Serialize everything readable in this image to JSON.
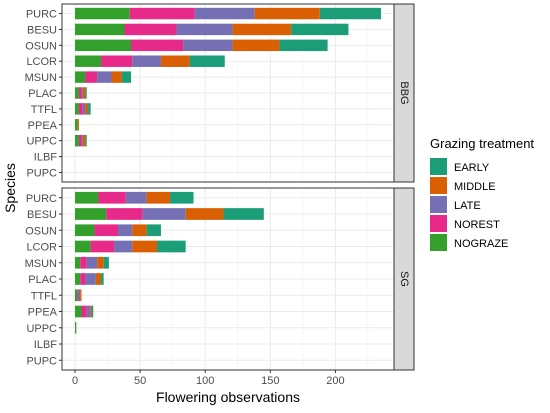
{
  "chart_data": {
    "type": "bar",
    "orientation": "horizontal",
    "stacked": true,
    "xlabel": "Flowering observations",
    "ylabel": "Species",
    "xlim": [
      -10,
      245
    ],
    "x_ticks": [
      0,
      50,
      100,
      150,
      200
    ],
    "grid": true,
    "legend_position": "right",
    "legend_title": "Grazing treatment",
    "legend_order": [
      "EARLY",
      "MIDDLE",
      "LATE",
      "NOREST",
      "NOGRAZE"
    ],
    "stack_order": [
      "NOGRAZE",
      "NOREST",
      "LATE",
      "MIDDLE",
      "EARLY"
    ],
    "colors": {
      "NOGRAZE": "#33a02c",
      "NOREST": "#e7298a",
      "LATE": "#7570b3",
      "MIDDLE": "#d95f02",
      "EARLY": "#1b9e77"
    },
    "panels": [
      {
        "strip_label": "BBG",
        "categories": [
          "PURC",
          "BESU",
          "OSUN",
          "LCOR",
          "MSUN",
          "PLAC",
          "TTFL",
          "PPEA",
          "UPPC",
          "ILBF",
          "PUPC"
        ],
        "series": [
          {
            "name": "NOGRAZE",
            "values": [
              42,
              38,
              43,
              20,
              8,
              3,
              3,
              2,
              3,
              0,
              0
            ]
          },
          {
            "name": "NOREST",
            "values": [
              50,
              40,
              40,
              24,
              9,
              2,
              3,
              0,
              2,
              0,
              0
            ]
          },
          {
            "name": "LATE",
            "values": [
              46,
              43,
              38,
              22,
              11,
              1,
              2,
              0,
              1,
              0,
              0
            ]
          },
          {
            "name": "MIDDLE",
            "values": [
              50,
              45,
              36,
              22,
              8,
              2,
              2,
              1,
              2,
              0,
              0
            ]
          },
          {
            "name": "EARLY",
            "values": [
              47,
              44,
              37,
              27,
              7,
              1,
              2,
              0,
              1,
              0,
              0
            ]
          }
        ]
      },
      {
        "strip_label": "SG",
        "categories": [
          "PURC",
          "BESU",
          "OSUN",
          "LCOR",
          "MSUN",
          "PLAC",
          "TTFL",
          "PPEA",
          "UPPC",
          "ILBF",
          "PUPC"
        ],
        "series": [
          {
            "name": "NOGRAZE",
            "values": [
              18,
              24,
              15,
              12,
              4,
              4,
              2,
              5,
              1,
              0,
              0
            ]
          },
          {
            "name": "NOREST",
            "values": [
              21,
              28,
              18,
              18,
              5,
              4,
              1,
              4,
              0,
              0,
              0
            ]
          },
          {
            "name": "LATE",
            "values": [
              16,
              33,
              11,
              14,
              8,
              8,
              1,
              3,
              0,
              0,
              0
            ]
          },
          {
            "name": "MIDDLE",
            "values": [
              18,
              29,
              11,
              19,
              5,
              4,
              1,
              1,
              0,
              0,
              0
            ]
          },
          {
            "name": "EARLY",
            "values": [
              18,
              31,
              11,
              22,
              4,
              2,
              0,
              1,
              0,
              0,
              0
            ]
          }
        ]
      }
    ]
  }
}
